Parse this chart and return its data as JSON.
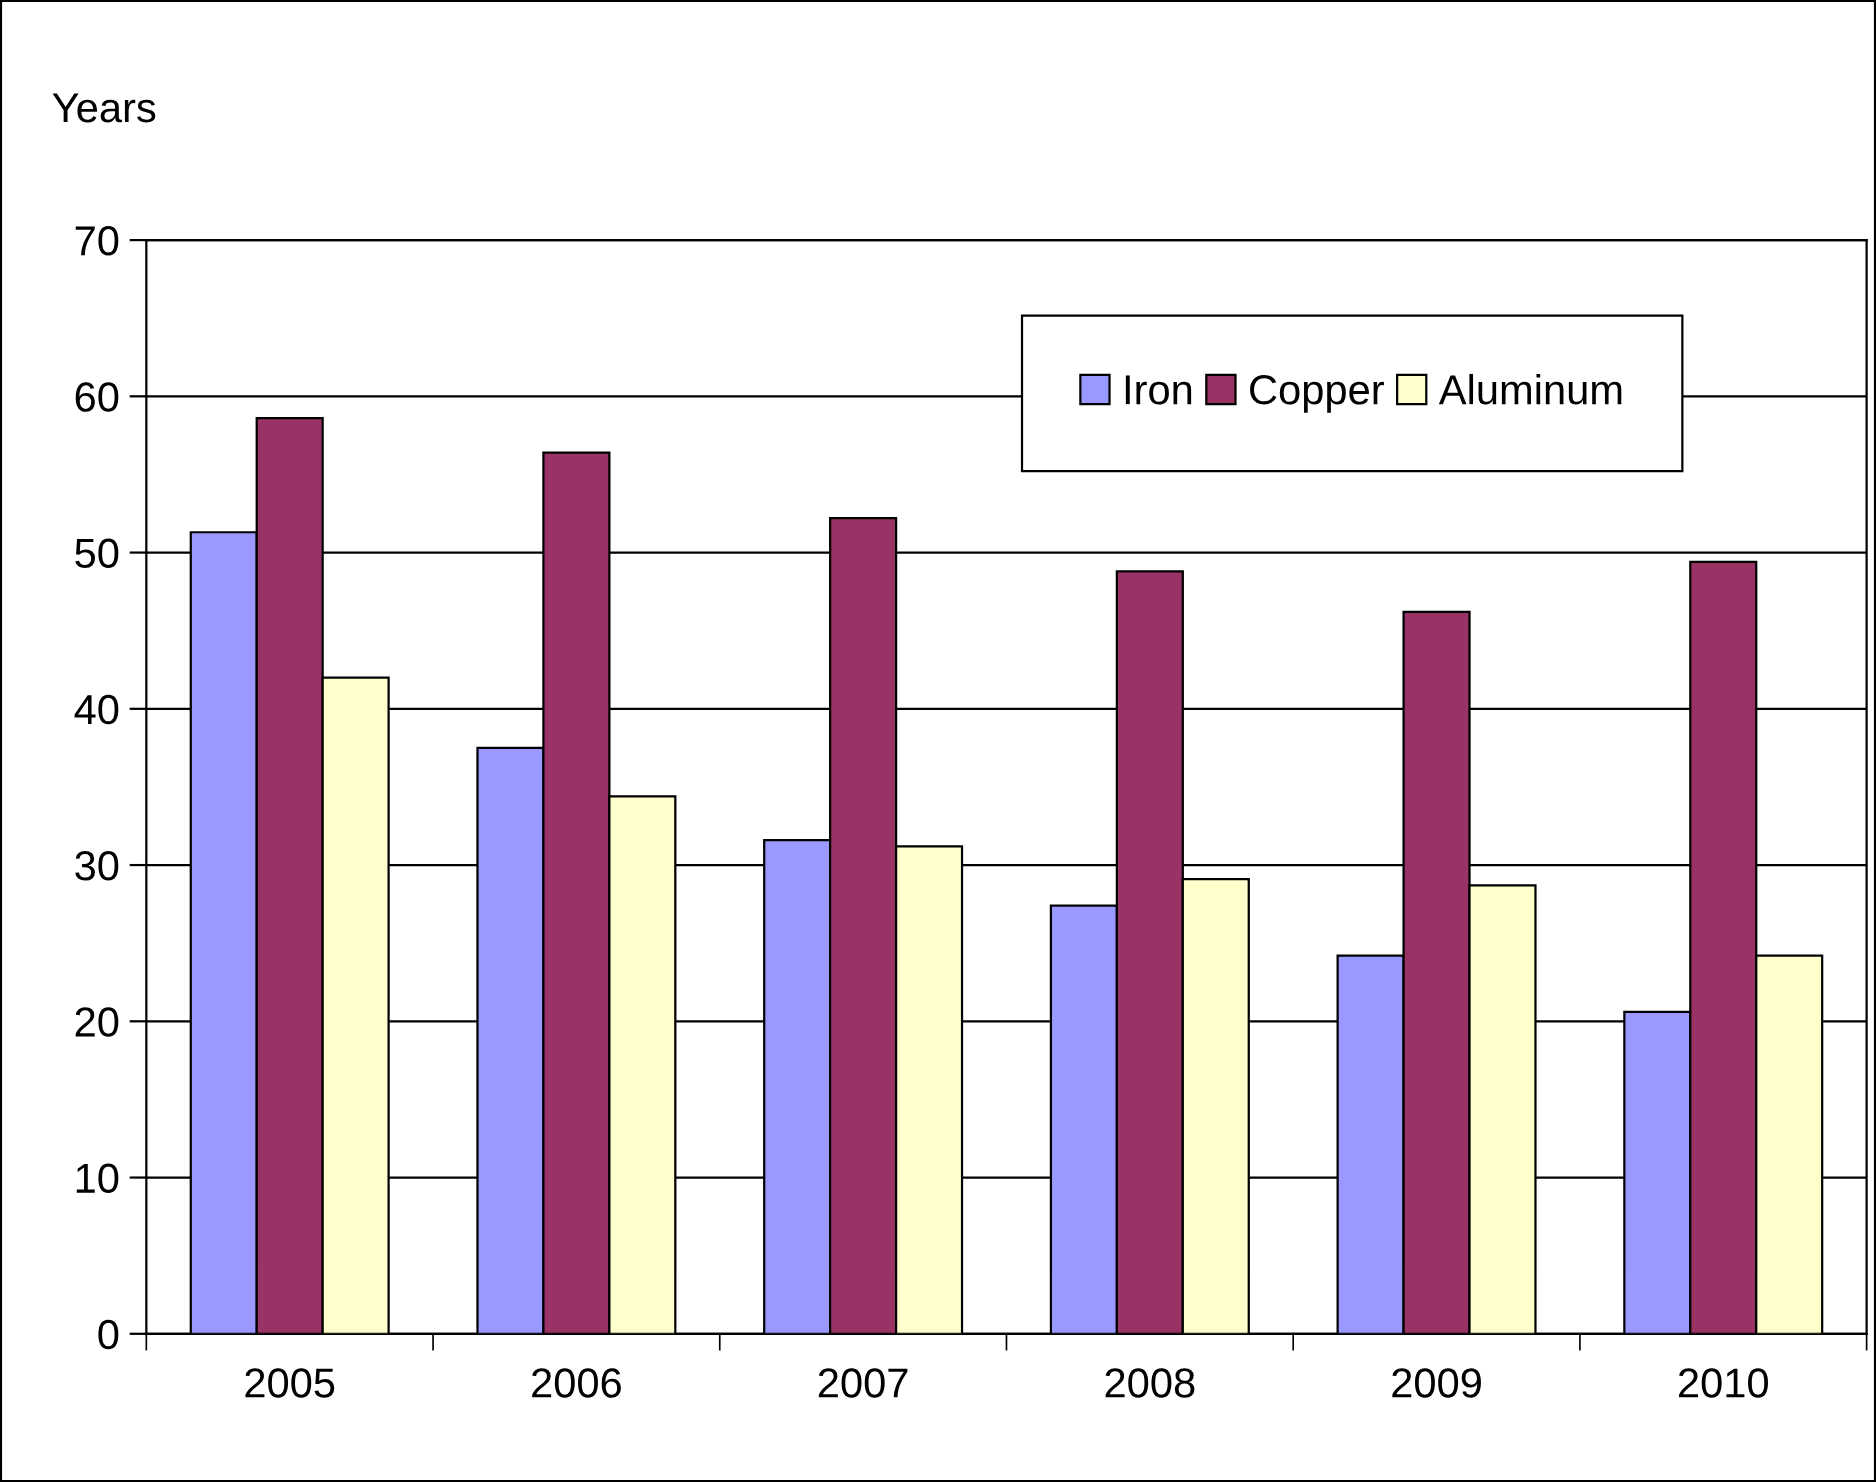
{
  "chart_data": {
    "type": "bar",
    "ylabel": "Years",
    "categories": [
      "2005",
      "2006",
      "2007",
      "2008",
      "2009",
      "2010"
    ],
    "series": [
      {
        "name": "Iron",
        "color": "#9999ff",
        "values": [
          51.3,
          37.5,
          31.6,
          27.4,
          24.2,
          20.6
        ]
      },
      {
        "name": "Copper",
        "color": "#993366",
        "values": [
          58.6,
          56.4,
          52.2,
          48.8,
          46.2,
          49.4
        ]
      },
      {
        "name": "Aluminum",
        "color": "#ffffcc",
        "values": [
          42.0,
          34.4,
          31.2,
          29.1,
          28.7,
          24.2
        ]
      }
    ],
    "ylim": [
      0,
      70
    ],
    "yticks": [
      0,
      10,
      20,
      30,
      40,
      50,
      60,
      70
    ],
    "grid": "y",
    "legend": "top right"
  }
}
